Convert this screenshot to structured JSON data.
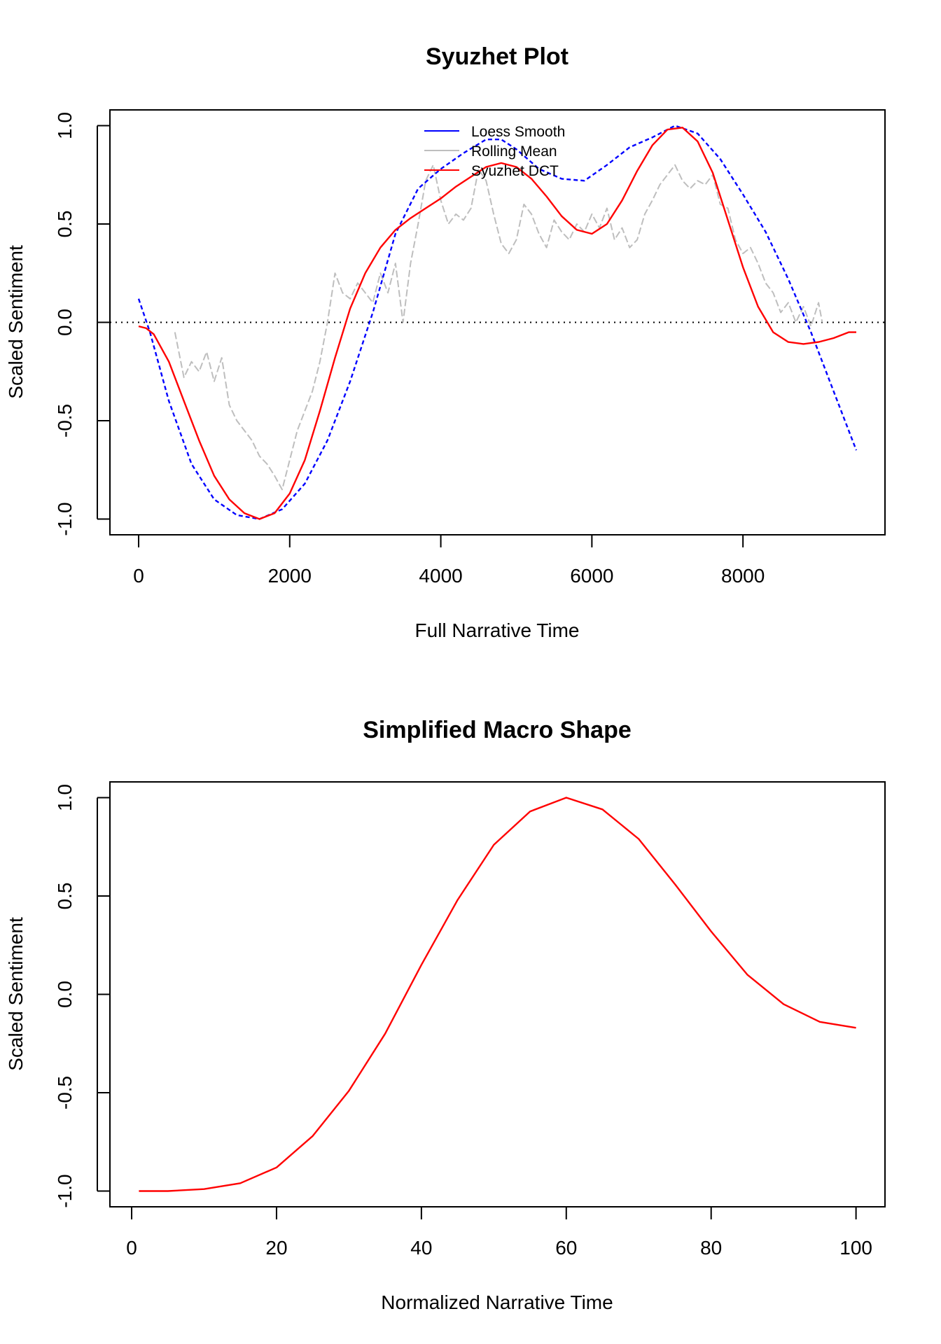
{
  "chart_data": [
    {
      "type": "line",
      "title": "Syuzhet Plot",
      "xlabel": "Full Narrative Time",
      "ylabel": "Scaled Sentiment",
      "xlim": [
        -380,
        9880
      ],
      "ylim": [
        -1.08,
        1.08
      ],
      "xticks": [
        0,
        2000,
        4000,
        6000,
        8000
      ],
      "xtick_labels": [
        "0",
        "2000",
        "4000",
        "6000",
        "8000"
      ],
      "yticks": [
        -1.0,
        -0.5,
        0.0,
        0.5,
        1.0
      ],
      "ytick_labels": [
        "-1.0",
        "-0.5",
        "0.0",
        "0.5",
        "1.0"
      ],
      "grid": false,
      "reference_line_y": 0.0,
      "legend_position": "top-center",
      "legend": [
        {
          "label": "Loess Smooth",
          "color": "#0000ff"
        },
        {
          "label": "Rolling Mean",
          "color": "#bebebe"
        },
        {
          "label": "Syuzhet DCT",
          "color": "#ff0000"
        }
      ],
      "series": [
        {
          "name": "Loess Smooth",
          "color": "#0000ff",
          "style": "dashed",
          "x": [
            0,
            150,
            400,
            700,
            1000,
            1300,
            1600,
            1900,
            2200,
            2500,
            2800,
            3100,
            3400,
            3700,
            4000,
            4300,
            4600,
            4800,
            5000,
            5300,
            5600,
            5900,
            6200,
            6500,
            6800,
            7100,
            7400,
            7700,
            8000,
            8300,
            8600,
            8900,
            9200,
            9500
          ],
          "y": [
            0.12,
            -0.05,
            -0.4,
            -0.72,
            -0.9,
            -0.98,
            -1.0,
            -0.95,
            -0.82,
            -0.6,
            -0.3,
            0.05,
            0.45,
            0.68,
            0.78,
            0.86,
            0.93,
            0.93,
            0.88,
            0.78,
            0.73,
            0.72,
            0.8,
            0.89,
            0.94,
            1.0,
            0.96,
            0.83,
            0.65,
            0.46,
            0.22,
            -0.05,
            -0.35,
            -0.65
          ]
        },
        {
          "name": "Rolling Mean",
          "color": "#bebebe",
          "style": "dashed",
          "x": [
            480,
            600,
            700,
            800,
            900,
            1000,
            1100,
            1200,
            1300,
            1400,
            1500,
            1600,
            1700,
            1800,
            1900,
            2000,
            2100,
            2200,
            2300,
            2400,
            2500,
            2600,
            2700,
            2800,
            2900,
            3000,
            3100,
            3200,
            3300,
            3400,
            3500,
            3600,
            3700,
            3800,
            3900,
            4000,
            4100,
            4200,
            4300,
            4400,
            4500,
            4600,
            4700,
            4800,
            4900,
            5000,
            5100,
            5200,
            5300,
            5400,
            5500,
            5600,
            5700,
            5800,
            5900,
            6000,
            6100,
            6200,
            6300,
            6400,
            6500,
            6600,
            6700,
            6800,
            6900,
            7000,
            7100,
            7200,
            7300,
            7400,
            7500,
            7600,
            7700,
            7800,
            7900,
            8000,
            8100,
            8200,
            8300,
            8400,
            8500,
            8600,
            8700,
            8800,
            8900,
            9000,
            9050
          ],
          "y": [
            -0.05,
            -0.28,
            -0.2,
            -0.25,
            -0.15,
            -0.3,
            -0.18,
            -0.42,
            -0.5,
            -0.55,
            -0.6,
            -0.68,
            -0.72,
            -0.78,
            -0.85,
            -0.7,
            -0.55,
            -0.45,
            -0.35,
            -0.2,
            0.0,
            0.25,
            0.15,
            0.12,
            0.2,
            0.15,
            0.1,
            0.25,
            0.15,
            0.3,
            0.0,
            0.3,
            0.5,
            0.72,
            0.8,
            0.62,
            0.5,
            0.55,
            0.52,
            0.58,
            0.78,
            0.72,
            0.55,
            0.4,
            0.35,
            0.42,
            0.6,
            0.55,
            0.45,
            0.38,
            0.52,
            0.46,
            0.42,
            0.5,
            0.46,
            0.55,
            0.48,
            0.58,
            0.42,
            0.48,
            0.38,
            0.42,
            0.55,
            0.62,
            0.7,
            0.75,
            0.8,
            0.72,
            0.68,
            0.72,
            0.7,
            0.75,
            0.6,
            0.58,
            0.42,
            0.35,
            0.38,
            0.3,
            0.2,
            0.15,
            0.05,
            0.1,
            0.0,
            0.08,
            -0.02,
            0.1,
            0.0
          ]
        },
        {
          "name": "Syuzhet DCT",
          "color": "#ff0000",
          "style": "solid",
          "x": [
            0,
            100,
            200,
            400,
            600,
            800,
            1000,
            1200,
            1400,
            1600,
            1800,
            2000,
            2200,
            2400,
            2600,
            2800,
            3000,
            3200,
            3400,
            3600,
            3800,
            4000,
            4200,
            4400,
            4600,
            4800,
            5000,
            5200,
            5400,
            5600,
            5800,
            6000,
            6200,
            6400,
            6600,
            6800,
            7000,
            7200,
            7400,
            7600,
            7800,
            8000,
            8200,
            8400,
            8600,
            8800,
            9000,
            9200,
            9400,
            9500
          ],
          "y": [
            -0.02,
            -0.03,
            -0.06,
            -0.2,
            -0.4,
            -0.6,
            -0.78,
            -0.9,
            -0.97,
            -1.0,
            -0.97,
            -0.87,
            -0.7,
            -0.45,
            -0.18,
            0.07,
            0.25,
            0.38,
            0.47,
            0.53,
            0.58,
            0.63,
            0.69,
            0.74,
            0.79,
            0.81,
            0.79,
            0.73,
            0.64,
            0.54,
            0.47,
            0.45,
            0.5,
            0.62,
            0.77,
            0.9,
            0.98,
            0.99,
            0.92,
            0.76,
            0.52,
            0.28,
            0.08,
            -0.05,
            -0.1,
            -0.11,
            -0.1,
            -0.08,
            -0.05,
            -0.05
          ]
        }
      ]
    },
    {
      "type": "line",
      "title": "Simplified Macro Shape",
      "xlabel": "Normalized Narrative Time",
      "ylabel": "Scaled Sentiment",
      "xlim": [
        -3,
        104
      ],
      "ylim": [
        -1.08,
        1.08
      ],
      "xticks": [
        0,
        20,
        40,
        60,
        80,
        100
      ],
      "xtick_labels": [
        "0",
        "20",
        "40",
        "60",
        "80",
        "100"
      ],
      "yticks": [
        -1.0,
        -0.5,
        0.0,
        0.5,
        1.0
      ],
      "ytick_labels": [
        "-1.0",
        "-0.5",
        "0.0",
        "0.5",
        "1.0"
      ],
      "grid": false,
      "series": [
        {
          "color": "#ff0000",
          "style": "solid",
          "x": [
            1,
            5,
            10,
            15,
            20,
            25,
            30,
            35,
            40,
            45,
            50,
            55,
            60,
            65,
            70,
            75,
            80,
            85,
            90,
            95,
            100
          ],
          "y": [
            -1.0,
            -1.0,
            -0.99,
            -0.96,
            -0.88,
            -0.72,
            -0.49,
            -0.2,
            0.15,
            0.48,
            0.76,
            0.93,
            1.0,
            0.94,
            0.79,
            0.56,
            0.32,
            0.1,
            -0.05,
            -0.14,
            -0.17
          ]
        }
      ]
    }
  ]
}
